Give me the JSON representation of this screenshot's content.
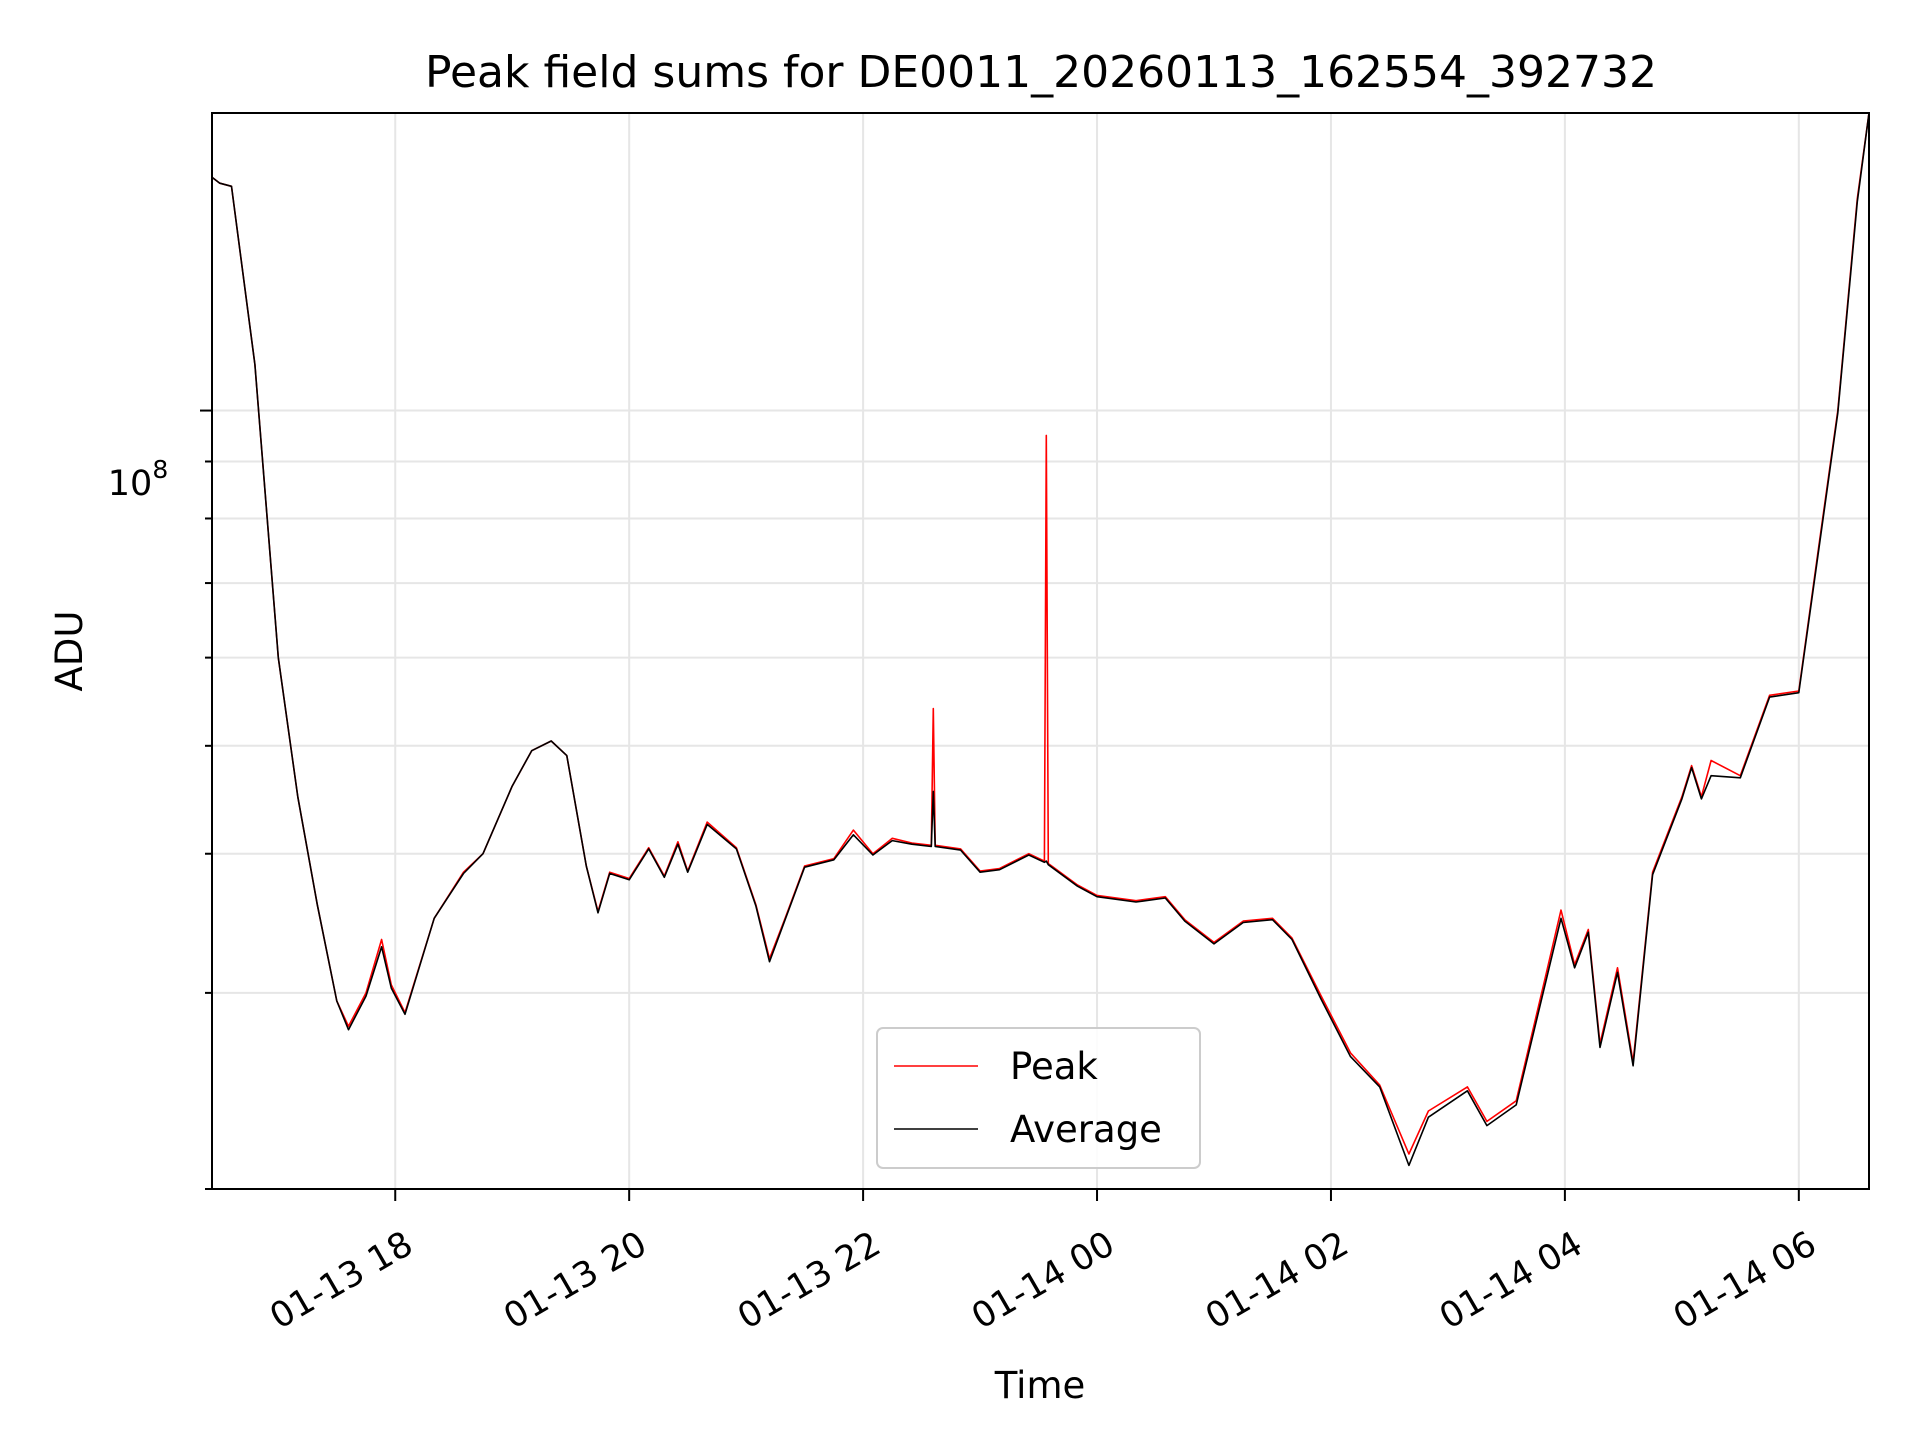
{
  "chart_data": {
    "type": "line",
    "title": "Peak field sums for DE0011_20260113_162554_392732",
    "xlabel": "Time",
    "ylabel": "ADU",
    "y_scale": "log",
    "xlim": [
      "2026-01-13 16:26",
      "2026-01-14 06:36"
    ],
    "ylim": [
      20000000,
      185000000
    ],
    "x_ticks": [
      "01-13 18",
      "01-13 20",
      "01-13 22",
      "01-14 00",
      "01-14 02",
      "01-14 04",
      "01-14 06"
    ],
    "x_tick_times": [
      "2026-01-13 18:00",
      "2026-01-13 20:00",
      "2026-01-13 22:00",
      "2026-01-14 00:00",
      "2026-01-14 02:00",
      "2026-01-14 04:00",
      "2026-01-14 06:00"
    ],
    "y_tick_label": "10",
    "y_tick_exponent": "8",
    "y_tick_value": 100000000,
    "grid": true,
    "legend": "lower-center",
    "series": [
      {
        "name": "Peak",
        "color": "#ff0000",
        "points": [
          [
            "2026-01-13 16:26",
            162000000
          ],
          [
            "2026-01-13 16:30",
            160000000
          ],
          [
            "2026-01-13 16:36",
            159000000
          ],
          [
            "2026-01-13 16:48",
            110000000
          ],
          [
            "2026-01-13 17:00",
            60000000
          ],
          [
            "2026-01-13 17:10",
            45000000
          ],
          [
            "2026-01-13 17:20",
            36000000
          ],
          [
            "2026-01-13 17:30",
            29500000
          ],
          [
            "2026-01-13 17:36",
            28000000
          ],
          [
            "2026-01-13 17:45",
            30000000
          ],
          [
            "2026-01-13 17:53",
            33500000
          ],
          [
            "2026-01-13 17:58",
            30500000
          ],
          [
            "2026-01-13 18:05",
            28800000
          ],
          [
            "2026-01-13 18:20",
            35000000
          ],
          [
            "2026-01-13 18:35",
            38500000
          ],
          [
            "2026-01-13 18:45",
            40000000
          ],
          [
            "2026-01-13 19:00",
            46000000
          ],
          [
            "2026-01-13 19:10",
            49500000
          ],
          [
            "2026-01-13 19:20",
            50500000
          ],
          [
            "2026-01-13 19:28",
            49000000
          ],
          [
            "2026-01-13 19:38",
            39000000
          ],
          [
            "2026-01-13 19:44",
            35500000
          ],
          [
            "2026-01-13 19:50",
            38500000
          ],
          [
            "2026-01-13 20:00",
            38000000
          ],
          [
            "2026-01-13 20:10",
            40500000
          ],
          [
            "2026-01-13 20:18",
            38200000
          ],
          [
            "2026-01-13 20:25",
            41000000
          ],
          [
            "2026-01-13 20:30",
            38600000
          ],
          [
            "2026-01-13 20:40",
            42700000
          ],
          [
            "2026-01-13 20:55",
            40500000
          ],
          [
            "2026-01-13 21:05",
            36000000
          ],
          [
            "2026-01-13 21:12",
            32200000
          ],
          [
            "2026-01-13 21:20",
            35000000
          ],
          [
            "2026-01-13 21:30",
            39000000
          ],
          [
            "2026-01-13 21:45",
            39600000
          ],
          [
            "2026-01-13 21:55",
            42000000
          ],
          [
            "2026-01-13 22:05",
            40000000
          ],
          [
            "2026-01-13 22:15",
            41300000
          ],
          [
            "2026-01-13 22:25",
            40900000
          ],
          [
            "2026-01-13 22:35",
            40700000
          ],
          [
            "2026-01-13 22:36",
            54000000
          ],
          [
            "2026-01-13 22:37",
            40700000
          ],
          [
            "2026-01-13 22:50",
            40400000
          ],
          [
            "2026-01-13 23:00",
            38600000
          ],
          [
            "2026-01-13 23:10",
            38800000
          ],
          [
            "2026-01-13 23:25",
            40000000
          ],
          [
            "2026-01-13 23:33",
            39400000
          ],
          [
            "2026-01-13 23:34",
            95000000
          ],
          [
            "2026-01-13 23:35",
            39200000
          ],
          [
            "2026-01-13 23:50",
            37500000
          ],
          [
            "2026-01-14 00:00",
            36700000
          ],
          [
            "2026-01-14 00:20",
            36300000
          ],
          [
            "2026-01-14 00:35",
            36600000
          ],
          [
            "2026-01-14 00:45",
            34900000
          ],
          [
            "2026-01-14 01:00",
            33300000
          ],
          [
            "2026-01-14 01:15",
            34800000
          ],
          [
            "2026-01-14 01:30",
            35000000
          ],
          [
            "2026-01-14 01:40",
            33600000
          ],
          [
            "2026-01-14 01:55",
            29800000
          ],
          [
            "2026-01-14 02:10",
            26500000
          ],
          [
            "2026-01-14 02:25",
            24800000
          ],
          [
            "2026-01-14 02:40",
            21500000
          ],
          [
            "2026-01-14 02:50",
            23500000
          ],
          [
            "2026-01-14 03:10",
            24700000
          ],
          [
            "2026-01-14 03:20",
            23000000
          ],
          [
            "2026-01-14 03:35",
            24000000
          ],
          [
            "2026-01-14 03:50",
            31000000
          ],
          [
            "2026-01-14 03:58",
            35600000
          ],
          [
            "2026-01-14 04:05",
            31800000
          ],
          [
            "2026-01-14 04:12",
            34200000
          ],
          [
            "2026-01-14 04:18",
            27000000
          ],
          [
            "2026-01-14 04:27",
            31600000
          ],
          [
            "2026-01-14 04:35",
            26000000
          ],
          [
            "2026-01-14 04:45",
            38500000
          ],
          [
            "2026-01-14 05:00",
            45000000
          ],
          [
            "2026-01-14 05:05",
            48000000
          ],
          [
            "2026-01-14 05:10",
            45000000
          ],
          [
            "2026-01-14 05:15",
            48500000
          ],
          [
            "2026-01-14 05:30",
            47000000
          ],
          [
            "2026-01-14 05:45",
            55500000
          ],
          [
            "2026-01-14 06:00",
            56000000
          ],
          [
            "2026-01-14 06:10",
            75000000
          ],
          [
            "2026-01-14 06:20",
            100000000
          ],
          [
            "2026-01-14 06:30",
            155000000
          ],
          [
            "2026-01-14 06:36",
            185000000
          ]
        ]
      },
      {
        "name": "Average",
        "color": "#000000",
        "points": [
          [
            "2026-01-13 16:26",
            162000000
          ],
          [
            "2026-01-13 16:30",
            160000000
          ],
          [
            "2026-01-13 16:36",
            159000000
          ],
          [
            "2026-01-13 16:48",
            110000000
          ],
          [
            "2026-01-13 17:00",
            60000000
          ],
          [
            "2026-01-13 17:10",
            45000000
          ],
          [
            "2026-01-13 17:20",
            36000000
          ],
          [
            "2026-01-13 17:30",
            29500000
          ],
          [
            "2026-01-13 17:36",
            27800000
          ],
          [
            "2026-01-13 17:45",
            29800000
          ],
          [
            "2026-01-13 17:53",
            33000000
          ],
          [
            "2026-01-13 17:58",
            30300000
          ],
          [
            "2026-01-13 18:05",
            28700000
          ],
          [
            "2026-01-13 18:20",
            35000000
          ],
          [
            "2026-01-13 18:35",
            38400000
          ],
          [
            "2026-01-13 18:45",
            40000000
          ],
          [
            "2026-01-13 19:00",
            46000000
          ],
          [
            "2026-01-13 19:10",
            49500000
          ],
          [
            "2026-01-13 19:20",
            50500000
          ],
          [
            "2026-01-13 19:28",
            49000000
          ],
          [
            "2026-01-13 19:38",
            39000000
          ],
          [
            "2026-01-13 19:44",
            35400000
          ],
          [
            "2026-01-13 19:50",
            38400000
          ],
          [
            "2026-01-13 20:00",
            37900000
          ],
          [
            "2026-01-13 20:10",
            40400000
          ],
          [
            "2026-01-13 20:18",
            38100000
          ],
          [
            "2026-01-13 20:25",
            40800000
          ],
          [
            "2026-01-13 20:30",
            38500000
          ],
          [
            "2026-01-13 20:40",
            42500000
          ],
          [
            "2026-01-13 20:55",
            40400000
          ],
          [
            "2026-01-13 21:05",
            35900000
          ],
          [
            "2026-01-13 21:12",
            32000000
          ],
          [
            "2026-01-13 21:20",
            34900000
          ],
          [
            "2026-01-13 21:30",
            38900000
          ],
          [
            "2026-01-13 21:45",
            39500000
          ],
          [
            "2026-01-13 21:55",
            41600000
          ],
          [
            "2026-01-13 22:05",
            39900000
          ],
          [
            "2026-01-13 22:15",
            41100000
          ],
          [
            "2026-01-13 22:25",
            40800000
          ],
          [
            "2026-01-13 22:35",
            40600000
          ],
          [
            "2026-01-13 22:36",
            45500000
          ],
          [
            "2026-01-13 22:37",
            40600000
          ],
          [
            "2026-01-13 22:50",
            40300000
          ],
          [
            "2026-01-13 23:00",
            38500000
          ],
          [
            "2026-01-13 23:10",
            38700000
          ],
          [
            "2026-01-13 23:25",
            39900000
          ],
          [
            "2026-01-13 23:33",
            39300000
          ],
          [
            "2026-01-13 23:34",
            39400000
          ],
          [
            "2026-01-13 23:35",
            39100000
          ],
          [
            "2026-01-13 23:50",
            37400000
          ],
          [
            "2026-01-14 00:00",
            36600000
          ],
          [
            "2026-01-14 00:20",
            36200000
          ],
          [
            "2026-01-14 00:35",
            36500000
          ],
          [
            "2026-01-14 00:45",
            34800000
          ],
          [
            "2026-01-14 01:00",
            33200000
          ],
          [
            "2026-01-14 01:15",
            34700000
          ],
          [
            "2026-01-14 01:30",
            34900000
          ],
          [
            "2026-01-14 01:40",
            33500000
          ],
          [
            "2026-01-14 01:55",
            29600000
          ],
          [
            "2026-01-14 02:10",
            26300000
          ],
          [
            "2026-01-14 02:25",
            24700000
          ],
          [
            "2026-01-14 02:40",
            21000000
          ],
          [
            "2026-01-14 02:50",
            23200000
          ],
          [
            "2026-01-14 03:10",
            24500000
          ],
          [
            "2026-01-14 03:20",
            22800000
          ],
          [
            "2026-01-14 03:35",
            23800000
          ],
          [
            "2026-01-14 03:50",
            30600000
          ],
          [
            "2026-01-14 03:58",
            35000000
          ],
          [
            "2026-01-14 04:05",
            31600000
          ],
          [
            "2026-01-14 04:12",
            34000000
          ],
          [
            "2026-01-14 04:18",
            26800000
          ],
          [
            "2026-01-14 04:27",
            31300000
          ],
          [
            "2026-01-14 04:35",
            25800000
          ],
          [
            "2026-01-14 04:45",
            38300000
          ],
          [
            "2026-01-14 05:00",
            44800000
          ],
          [
            "2026-01-14 05:05",
            47800000
          ],
          [
            "2026-01-14 05:10",
            44800000
          ],
          [
            "2026-01-14 05:15",
            47000000
          ],
          [
            "2026-01-14 05:30",
            46800000
          ],
          [
            "2026-01-14 05:45",
            55300000
          ],
          [
            "2026-01-14 06:00",
            55800000
          ],
          [
            "2026-01-14 06:10",
            74500000
          ],
          [
            "2026-01-14 06:20",
            99500000
          ],
          [
            "2026-01-14 06:30",
            154000000
          ],
          [
            "2026-01-14 06:36",
            185000000
          ]
        ]
      }
    ]
  }
}
